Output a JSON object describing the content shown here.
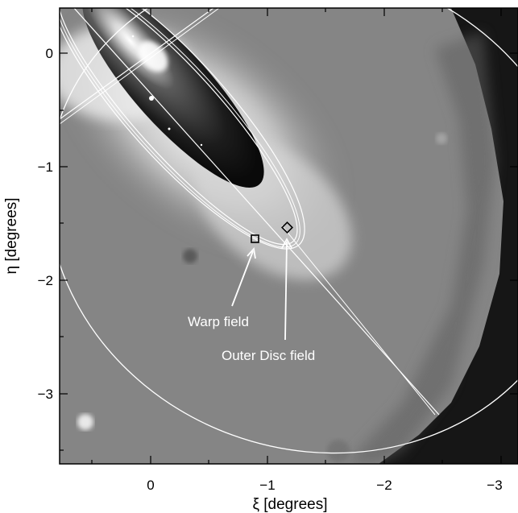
{
  "figure": {
    "xlabel": "ξ [degrees]",
    "ylabel": "η [degrees]",
    "xticks": [
      "0",
      "−1",
      "−2",
      "−3"
    ],
    "yticks": [
      "0",
      "−1",
      "−2",
      "−3"
    ],
    "annotations": {
      "warp": "Warp field",
      "outer": "Outer Disc field"
    },
    "colors": {
      "frame": "#000000",
      "overlay_lines": "#ffffff",
      "background_dark": "#1a1a1a",
      "map_mid": "#7a7a7a",
      "map_bright": "#ffffff"
    },
    "objects": [
      "galaxy-image",
      "warp-field-marker",
      "outer-disc-field-marker",
      "survey-boundary-ellipse",
      "major-axis-line",
      "minor-axis-line"
    ]
  }
}
